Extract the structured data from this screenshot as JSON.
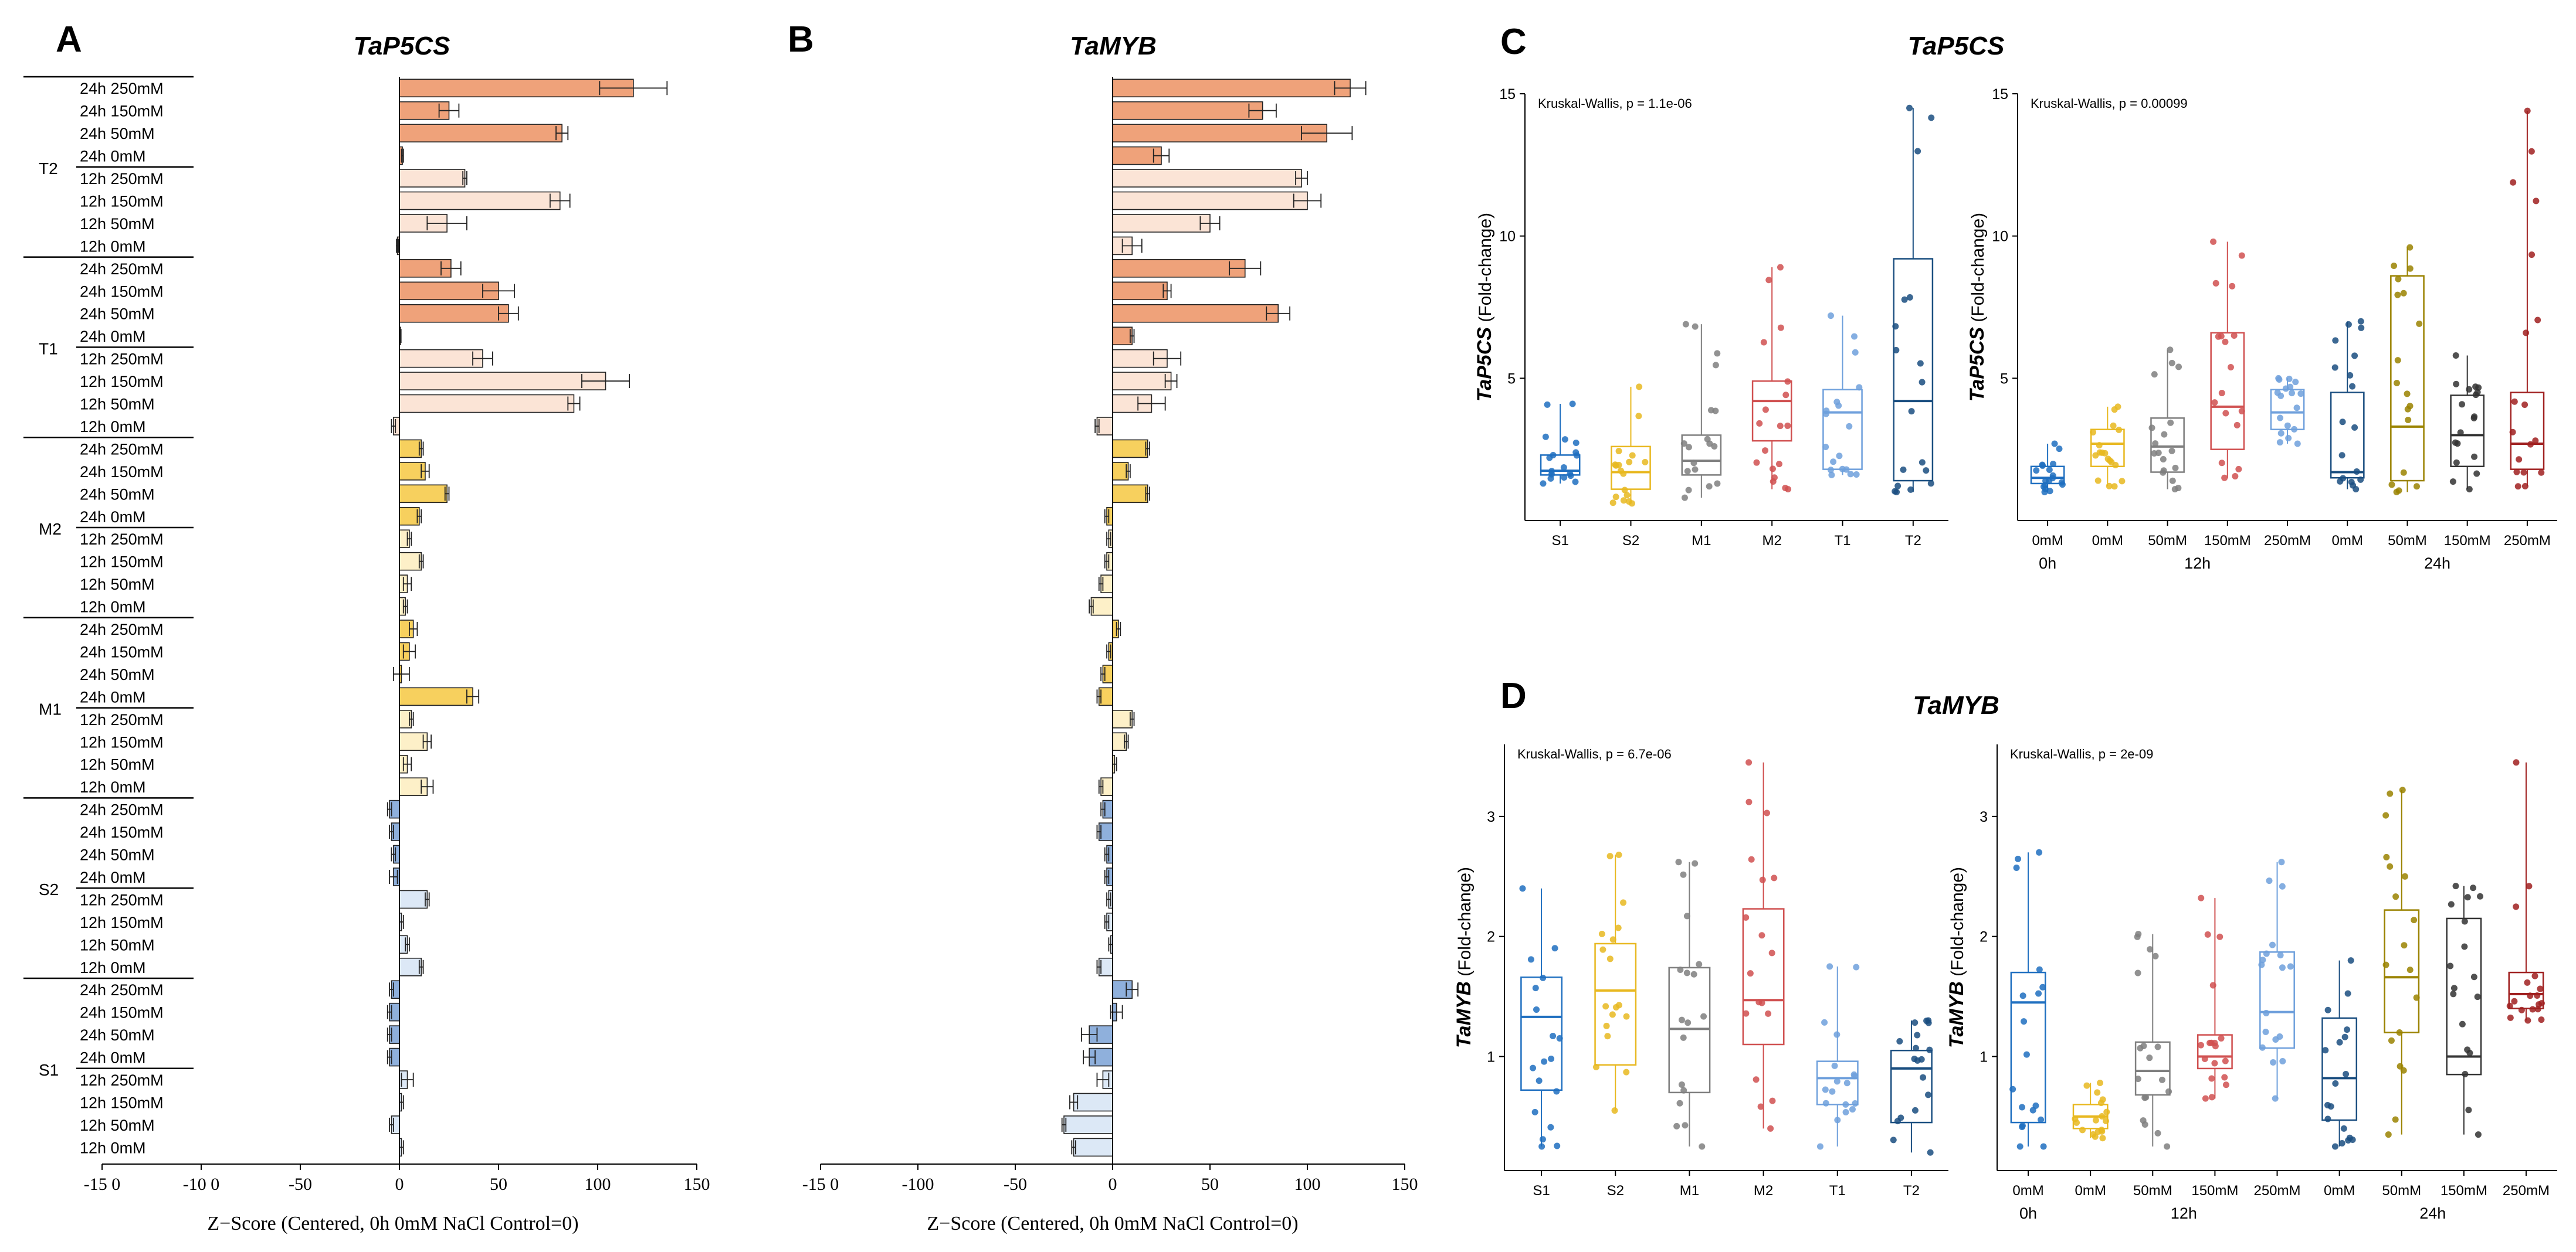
{
  "panels": {
    "A": "A",
    "B": "B",
    "C": "C",
    "D": "D"
  },
  "chart_data": [
    {
      "panel": "A",
      "type": "bar",
      "orientation": "horizontal",
      "title": "TaP5CS",
      "xlabel": "Z−Score (Centered, 0h 0mM NaCl Control=0)",
      "xlim": [
        -150,
        150
      ],
      "xticks": [
        -150,
        -100,
        -50,
        0,
        50,
        100,
        150
      ],
      "xtick_labels": [
        "-15 0",
        "-10 0",
        "-50",
        "0",
        "50",
        "100",
        "150"
      ],
      "genotypes": [
        "T2",
        "T1",
        "M2",
        "M1",
        "S2",
        "S1"
      ],
      "rows": [
        "24h 250mM",
        "24h 150mM",
        "24h 50mM",
        "24h 0mM",
        "12h 250mM",
        "12h 150mM",
        "12h 50mM",
        "12h 0mM"
      ],
      "colors": {
        "T": [
          "#efa27a",
          "#fbe4d6"
        ],
        "M": [
          "#f7d05e",
          "#fdf0c8"
        ],
        "S": [
          "#8fb0dc",
          "#dce8f6"
        ]
      },
      "values": {
        "T2": [
          118,
          25,
          82,
          1.5,
          33,
          81,
          24,
          -1
        ],
        "T1": [
          26,
          50,
          55,
          0.5,
          42,
          104,
          88,
          -3
        ],
        "M2": [
          11,
          13,
          24,
          10,
          5,
          11,
          4,
          3
        ],
        "M1": [
          7,
          5,
          1,
          37,
          6,
          14,
          4,
          14
        ],
        "S2": [
          -5,
          -4,
          -3,
          -3,
          14,
          1,
          4,
          11
        ],
        "S1": [
          -4,
          -5,
          -5,
          -5,
          4,
          1,
          -4,
          1
        ]
      },
      "errors": {
        "T2": [
          17,
          5,
          3,
          0.5,
          1,
          5,
          10,
          0.5
        ],
        "T1": [
          5,
          8,
          5,
          0.3,
          5,
          12,
          3,
          1
        ],
        "M2": [
          1,
          2,
          1,
          1,
          1,
          1,
          2,
          1
        ],
        "M1": [
          2,
          3,
          4,
          3,
          1,
          2,
          2,
          3
        ],
        "S2": [
          1,
          1,
          1,
          2,
          1,
          1,
          1,
          1
        ],
        "S1": [
          1,
          1,
          1,
          1,
          3,
          1,
          1,
          1
        ]
      }
    },
    {
      "panel": "B",
      "type": "bar",
      "orientation": "horizontal",
      "title": "TaMYB",
      "xlabel": "Z−Score (Centered, 0h 0mM NaCl Control=0)",
      "xlim": [
        -150,
        150
      ],
      "xticks": [
        -150,
        -100,
        -50,
        0,
        50,
        100,
        150
      ],
      "xtick_labels": [
        "-15 0",
        "-100",
        "-50",
        "0",
        "50",
        "100",
        "150"
      ],
      "values": {
        "T2": [
          122,
          77,
          110,
          25,
          97,
          100,
          50,
          10
        ],
        "T1": [
          68,
          28,
          85,
          10,
          28,
          30,
          20,
          -8
        ],
        "M2": [
          18,
          8,
          18,
          -3,
          -2,
          -3,
          -6,
          -11
        ],
        "M1": [
          3,
          -2,
          -5,
          -7,
          10,
          7,
          1,
          -6
        ],
        "S2": [
          -5,
          -7,
          -3,
          -3,
          -2,
          -3,
          -1,
          -7
        ],
        "S1": [
          10,
          2,
          -12,
          -12,
          -5,
          -20,
          -25,
          -20
        ]
      },
      "errors": {
        "T2": [
          8,
          7,
          13,
          4,
          3,
          7,
          5,
          5
        ],
        "T1": [
          8,
          2,
          6,
          1,
          7,
          3,
          7,
          1
        ],
        "M2": [
          1,
          1,
          1,
          1,
          1,
          1,
          1,
          1
        ],
        "M1": [
          1,
          1,
          1,
          1,
          1,
          1,
          1,
          1
        ],
        "S2": [
          1,
          1,
          1,
          1,
          1,
          1,
          1,
          1
        ],
        "S1": [
          3,
          3,
          4,
          3,
          3,
          2,
          1,
          1
        ]
      }
    },
    {
      "panel": "C",
      "type": "box",
      "title": "TaP5CS",
      "ylabel_gene": "TaP5CS",
      "ylabel_unit": " (Fold-change)",
      "subplots": [
        {
          "annotation": "Kruskal-Wallis, p = 1.1e-06",
          "ylim": [
            0,
            15
          ],
          "yticks": [
            5,
            10,
            15
          ],
          "groups": [
            {
              "label": "S1",
              "color": "#1f6fc0",
              "box": [
                1.3,
                1.6,
                1.75,
                2.3,
                4.1
              ]
            },
            {
              "label": "S2",
              "color": "#e8b820",
              "box": [
                0.6,
                1.1,
                1.7,
                2.6,
                4.7
              ]
            },
            {
              "label": "M1",
              "color": "#7f7f7f",
              "box": [
                0.8,
                1.6,
                2.1,
                3.0,
                6.9
              ]
            },
            {
              "label": "M2",
              "color": "#d05050",
              "box": [
                1.1,
                2.8,
                4.2,
                4.9,
                8.9
              ]
            },
            {
              "label": "T1",
              "color": "#6fa0dc",
              "box": [
                1.6,
                1.8,
                3.8,
                4.6,
                7.2
              ]
            },
            {
              "label": "T2",
              "color": "#1a4e80",
              "box": [
                1.0,
                1.4,
                4.2,
                9.2,
                14.5
              ]
            }
          ]
        },
        {
          "annotation": "Kruskal-Wallis, p = 0.00099",
          "ylim": [
            0,
            15
          ],
          "yticks": [
            5,
            10,
            15
          ],
          "xgroup_labels": [
            "0h",
            "12h",
            "24h"
          ],
          "groups": [
            {
              "label": "0mM",
              "color": "#1f6fc0",
              "box": [
                1.0,
                1.3,
                1.5,
                1.9,
                2.7
              ]
            },
            {
              "label": "0mM",
              "color": "#e8b820",
              "box": [
                1.2,
                1.9,
                2.7,
                3.2,
                4.0
              ]
            },
            {
              "label": "50mM",
              "color": "#7f7f7f",
              "box": [
                1.1,
                1.7,
                2.6,
                3.6,
                6.0
              ]
            },
            {
              "label": "150mM",
              "color": "#d05050",
              "box": [
                1.5,
                2.5,
                4.0,
                6.6,
                9.8
              ]
            },
            {
              "label": "250mM",
              "color": "#6fa0dc",
              "box": [
                2.7,
                3.2,
                3.8,
                4.6,
                5.0
              ]
            },
            {
              "label": "0mM",
              "color": "#1a4e80",
              "box": [
                1.1,
                1.5,
                1.7,
                4.5,
                7.0
              ]
            },
            {
              "label": "50mM",
              "color": "#9a8200",
              "box": [
                1.0,
                1.4,
                3.3,
                8.6,
                9.6
              ]
            },
            {
              "label": "150mM",
              "color": "#333333",
              "box": [
                1.1,
                1.9,
                3.0,
                4.4,
                5.8
              ]
            },
            {
              "label": "250mM",
              "color": "#a02020",
              "box": [
                1.2,
                1.8,
                2.7,
                4.5,
                14.4
              ]
            }
          ]
        }
      ]
    },
    {
      "panel": "D",
      "type": "box",
      "title": "TaMYB",
      "ylabel_gene": "TaMYB",
      "ylabel_unit": " (Fold-change)",
      "subplots": [
        {
          "annotation": "Kruskal-Wallis, p = 6.7e-06",
          "ylim": [
            0.05,
            3.6
          ],
          "yticks": [
            1,
            2,
            3
          ],
          "groups": [
            {
              "label": "S1",
              "color": "#1f6fc0",
              "box": [
                0.25,
                0.72,
                1.33,
                1.66,
                2.4
              ]
            },
            {
              "label": "S2",
              "color": "#e8b820",
              "box": [
                0.55,
                0.93,
                1.55,
                1.94,
                2.68
              ]
            },
            {
              "label": "M1",
              "color": "#7f7f7f",
              "box": [
                0.25,
                0.7,
                1.23,
                1.74,
                2.62
              ]
            },
            {
              "label": "M2",
              "color": "#d05050",
              "box": [
                0.4,
                1.1,
                1.47,
                2.23,
                3.45
              ]
            },
            {
              "label": "T1",
              "color": "#6fa0dc",
              "box": [
                0.25,
                0.6,
                0.82,
                0.96,
                1.75
              ]
            },
            {
              "label": "T2",
              "color": "#1a4e80",
              "box": [
                0.2,
                0.45,
                0.9,
                1.05,
                1.3
              ]
            }
          ]
        },
        {
          "annotation": "Kruskal-Wallis, p = 2e-09",
          "ylim": [
            0.05,
            3.6
          ],
          "yticks": [
            1,
            2,
            3
          ],
          "xgroup_labels": [
            "0h",
            "12h",
            "24h"
          ],
          "groups": [
            {
              "label": "0mM",
              "color": "#1f6fc0",
              "box": [
                0.25,
                0.45,
                1.45,
                1.7,
                2.7
              ]
            },
            {
              "label": "0mM",
              "color": "#e8b820",
              "box": [
                0.32,
                0.4,
                0.5,
                0.6,
                0.78
              ]
            },
            {
              "label": "50mM",
              "color": "#7f7f7f",
              "box": [
                0.25,
                0.68,
                0.88,
                1.12,
                2.02
              ]
            },
            {
              "label": "150mM",
              "color": "#d05050",
              "box": [
                0.65,
                0.9,
                1.0,
                1.18,
                2.32
              ]
            },
            {
              "label": "250mM",
              "color": "#6fa0dc",
              "box": [
                0.65,
                1.07,
                1.37,
                1.87,
                2.62
              ]
            },
            {
              "label": "0mM",
              "color": "#1a4e80",
              "box": [
                0.25,
                0.47,
                0.82,
                1.32,
                1.8
              ]
            },
            {
              "label": "50mM",
              "color": "#9a8200",
              "box": [
                0.35,
                1.2,
                1.66,
                2.22,
                3.22
              ]
            },
            {
              "label": "150mM",
              "color": "#333333",
              "box": [
                0.35,
                0.85,
                1.0,
                2.15,
                2.42
              ]
            },
            {
              "label": "250mM",
              "color": "#a02020",
              "box": [
                1.3,
                1.4,
                1.52,
                1.7,
                3.45
              ]
            }
          ]
        }
      ]
    }
  ]
}
